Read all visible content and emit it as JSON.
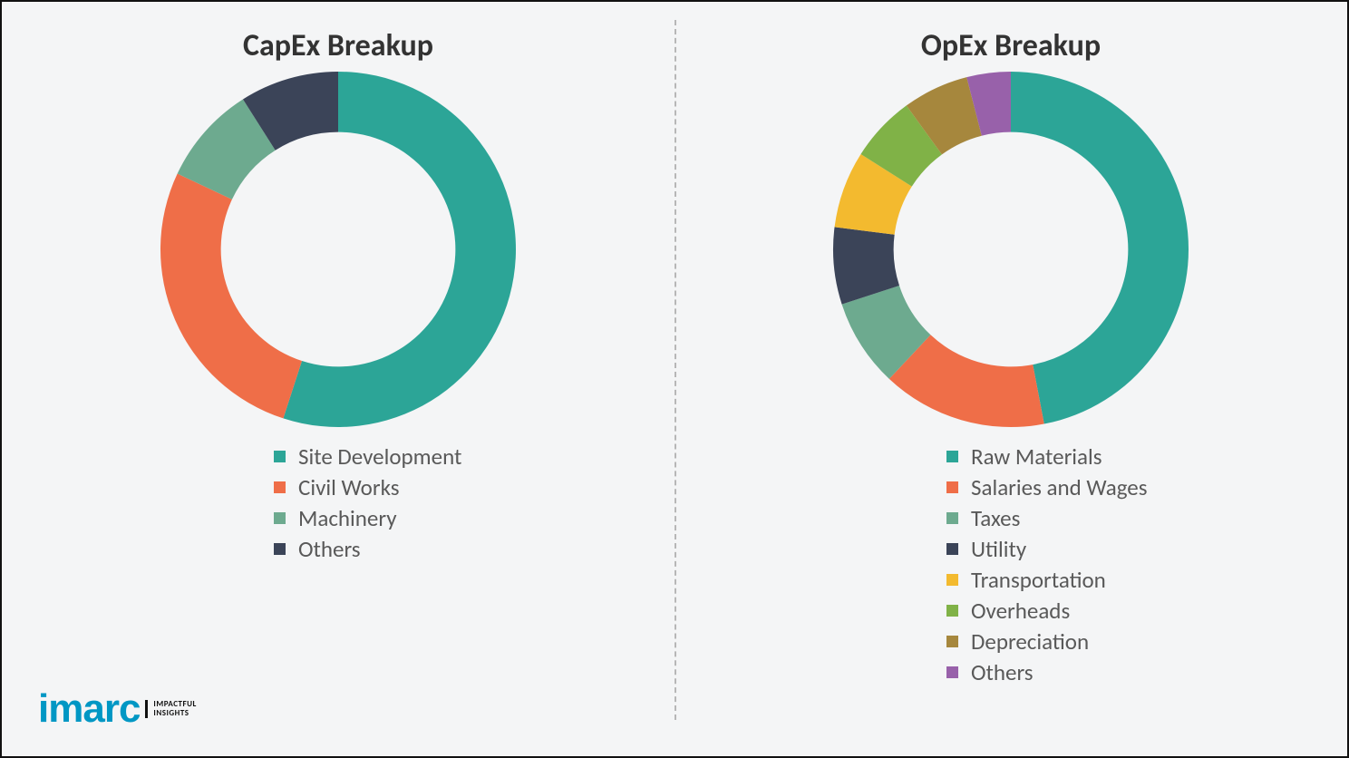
{
  "background_color": "#f4f5f6",
  "divider_color": "#b7b7b7",
  "border_color": "#111111",
  "title_fontsize": 34,
  "title_color": "#333333",
  "legend_fontsize": 25,
  "legend_text_color": "#595959",
  "legend_swatch_size": 13,
  "brand": {
    "name": "imarc",
    "color": "#0097c4",
    "tagline_line1": "IMPACTFUL",
    "tagline_line2": "INSIGHTS"
  },
  "charts": {
    "capex": {
      "type": "donut",
      "title": "CapEx Breakup",
      "inner_radius_pct": 66,
      "series": [
        {
          "label": "Site Development",
          "value": 55,
          "color": "#2ca597"
        },
        {
          "label": "Civil Works",
          "value": 27,
          "color": "#ef6e48"
        },
        {
          "label": "Machinery",
          "value": 9,
          "color": "#6daa8f"
        },
        {
          "label": "Others",
          "value": 9,
          "color": "#3b4458"
        }
      ]
    },
    "opex": {
      "type": "donut",
      "title": "OpEx Breakup",
      "inner_radius_pct": 66,
      "series": [
        {
          "label": "Raw Materials",
          "value": 47,
          "color": "#2ca597"
        },
        {
          "label": "Salaries and Wages",
          "value": 15,
          "color": "#ef6e48"
        },
        {
          "label": "Taxes",
          "value": 8,
          "color": "#6daa8f"
        },
        {
          "label": "Utility",
          "value": 7,
          "color": "#3b4458"
        },
        {
          "label": "Transportation",
          "value": 7,
          "color": "#f3ba2f"
        },
        {
          "label": "Overheads",
          "value": 6,
          "color": "#80b247"
        },
        {
          "label": "Depreciation",
          "value": 6,
          "color": "#a6873d"
        },
        {
          "label": "Others",
          "value": 4,
          "color": "#9861aa"
        }
      ]
    }
  }
}
